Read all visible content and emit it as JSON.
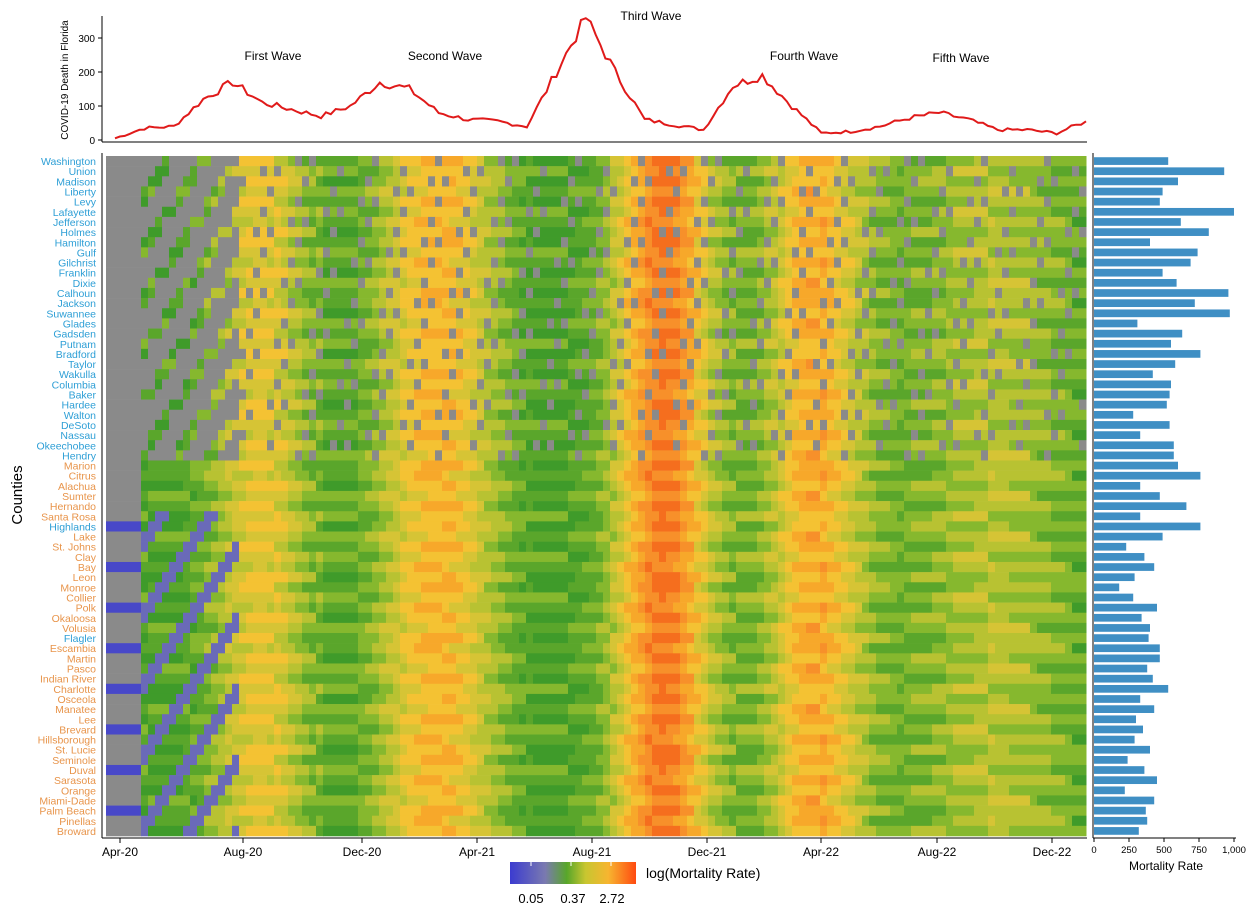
{
  "top_chart": {
    "ylabel": "COVID-19 Death in Florida",
    "yticks": [
      0,
      100,
      200,
      300
    ],
    "wave_labels": [
      "First Wave",
      "Second Wave",
      "Third Wave",
      "Fourth Wave",
      "Fifth Wave"
    ]
  },
  "heatmap": {
    "ylabel": "Counties",
    "date_ticks": [
      "Apr-20",
      "Aug-20",
      "Dec-20",
      "Apr-21",
      "Aug-21",
      "Dec-21",
      "Apr-22",
      "Aug-22",
      "Dec-22"
    ],
    "legend_title": "log(Mortality Rate)",
    "legend_ticks": [
      "0.05",
      "0.37",
      "2.72"
    ]
  },
  "bar_panel": {
    "xlabel": "Mortality Rate",
    "xticks": [
      "0",
      "250",
      "500",
      "750",
      "1,000"
    ]
  },
  "colors": {
    "line": "#e01a1a",
    "bar": "#3f8fc4",
    "county_blue": "#2e9fd6",
    "county_orange": "#e8944a",
    "missing": "#8a8a8a"
  },
  "chart_data": [
    {
      "type": "line",
      "ylabel": "COVID-19 Death in Florida",
      "ylim": [
        0,
        380
      ],
      "x": [
        "Apr-20",
        "May-20",
        "Jun-20",
        "Jul-20",
        "Aug-20",
        "Sep-20",
        "Oct-20",
        "Nov-20",
        "Dec-20",
        "Jan-21",
        "Feb-21",
        "Mar-21",
        "Apr-21",
        "May-21",
        "Jun-21",
        "Jul-21",
        "Aug-21",
        "Sep-21",
        "Oct-21",
        "Nov-21",
        "Dec-21",
        "Jan-22",
        "Feb-22",
        "Mar-22",
        "Apr-22",
        "May-22",
        "Jun-22",
        "Jul-22",
        "Aug-22",
        "Sep-22",
        "Oct-22",
        "Nov-22",
        "Dec-22",
        "Jan-23"
      ],
      "values": [
        5,
        35,
        40,
        120,
        170,
        110,
        90,
        70,
        100,
        170,
        150,
        80,
        60,
        55,
        40,
        200,
        360,
        200,
        60,
        45,
        30,
        160,
        190,
        100,
        20,
        25,
        40,
        65,
        80,
        60,
        30,
        30,
        20,
        55
      ]
    },
    {
      "type": "heatmap",
      "ylabel": "Counties",
      "x_ticks": [
        "Apr-20",
        "Aug-20",
        "Dec-20",
        "Apr-21",
        "Aug-21",
        "Dec-21",
        "Apr-22",
        "Aug-22",
        "Dec-22"
      ],
      "color_scale": {
        "label": "log(Mortality Rate)",
        "ticks": [
          0.05,
          0.37,
          2.72
        ],
        "low": "#3b3bd0",
        "mid": "#58a62a",
        "high": "#ff4a10",
        "missing": "#8a8a8a"
      },
      "counties": [
        "Washington",
        "Union",
        "Madison",
        "Liberty",
        "Levy",
        "Lafayette",
        "Jefferson",
        "Holmes",
        "Hamilton",
        "Gulf",
        "Gilchrist",
        "Franklin",
        "Dixie",
        "Calhoun",
        "Jackson",
        "Suwannee",
        "Glades",
        "Gadsden",
        "Putnam",
        "Bradford",
        "Taylor",
        "Wakulla",
        "Columbia",
        "Baker",
        "Hardee",
        "Walton",
        "DeSoto",
        "Nassau",
        "Okeechobee",
        "Hendry",
        "Marion",
        "Citrus",
        "Alachua",
        "Sumter",
        "Hernando",
        "Santa Rosa",
        "Highlands",
        "Lake",
        "St. Johns",
        "Clay",
        "Bay",
        "Leon",
        "Monroe",
        "Collier",
        "Polk",
        "Okaloosa",
        "Volusia",
        "Flagler",
        "Escambia",
        "Martin",
        "Pasco",
        "Indian River",
        "Charlotte",
        "Osceola",
        "Manatee",
        "Lee",
        "Brevard",
        "Hillsborough",
        "St. Lucie",
        "Seminole",
        "Duval",
        "Sarasota",
        "Orange",
        "Miami-Dade",
        "Palm Beach",
        "Pinellas",
        "Broward"
      ],
      "county_group": [
        "blue",
        "blue",
        "blue",
        "blue",
        "blue",
        "blue",
        "blue",
        "blue",
        "blue",
        "blue",
        "blue",
        "blue",
        "blue",
        "blue",
        "blue",
        "blue",
        "blue",
        "blue",
        "blue",
        "blue",
        "blue",
        "blue",
        "blue",
        "blue",
        "blue",
        "blue",
        "blue",
        "blue",
        "blue",
        "blue",
        "orange",
        "orange",
        "orange",
        "orange",
        "orange",
        "orange",
        "blue",
        "orange",
        "orange",
        "orange",
        "orange",
        "orange",
        "orange",
        "orange",
        "orange",
        "orange",
        "orange",
        "blue",
        "orange",
        "orange",
        "orange",
        "orange",
        "orange",
        "orange",
        "orange",
        "orange",
        "orange",
        "orange",
        "orange",
        "orange",
        "orange",
        "orange",
        "orange",
        "orange",
        "orange",
        "orange",
        "orange"
      ]
    },
    {
      "type": "bar",
      "orientation": "horizontal",
      "xlabel": "Mortality Rate",
      "xlim": [
        0,
        1000
      ],
      "categories": [
        "Washington",
        "Union",
        "Madison",
        "Liberty",
        "Levy",
        "Lafayette",
        "Jefferson",
        "Holmes",
        "Hamilton",
        "Gulf",
        "Gilchrist",
        "Franklin",
        "Dixie",
        "Calhoun",
        "Jackson",
        "Suwannee",
        "Glades",
        "Gadsden",
        "Putnam",
        "Bradford",
        "Taylor",
        "Wakulla",
        "Columbia",
        "Baker",
        "Hardee",
        "Walton",
        "DeSoto",
        "Nassau",
        "Okeechobee",
        "Hendry",
        "Marion",
        "Citrus",
        "Alachua",
        "Sumter",
        "Hernando",
        "Santa Rosa",
        "Highlands",
        "Lake",
        "St. Johns",
        "Clay",
        "Bay",
        "Leon",
        "Monroe",
        "Collier",
        "Polk",
        "Okaloosa",
        "Volusia",
        "Flagler",
        "Escambia",
        "Martin",
        "Pasco",
        "Indian River",
        "Charlotte",
        "Osceola",
        "Manatee",
        "Lee",
        "Brevard",
        "Hillsborough",
        "St. Lucie",
        "Seminole",
        "Duval",
        "Sarasota",
        "Orange",
        "Miami-Dade",
        "Palm Beach",
        "Pinellas",
        "Broward"
      ],
      "values": [
        530,
        930,
        600,
        490,
        470,
        1000,
        620,
        820,
        400,
        740,
        690,
        490,
        590,
        960,
        720,
        970,
        310,
        630,
        550,
        760,
        580,
        420,
        550,
        540,
        520,
        280,
        540,
        330,
        570,
        570,
        600,
        760,
        330,
        470,
        660,
        330,
        760,
        490,
        230,
        360,
        430,
        290,
        180,
        280,
        450,
        340,
        400,
        390,
        470,
        470,
        380,
        420,
        530,
        330,
        430,
        300,
        350,
        290,
        400,
        240,
        360,
        450,
        220,
        430,
        370,
        380,
        320
      ]
    }
  ]
}
